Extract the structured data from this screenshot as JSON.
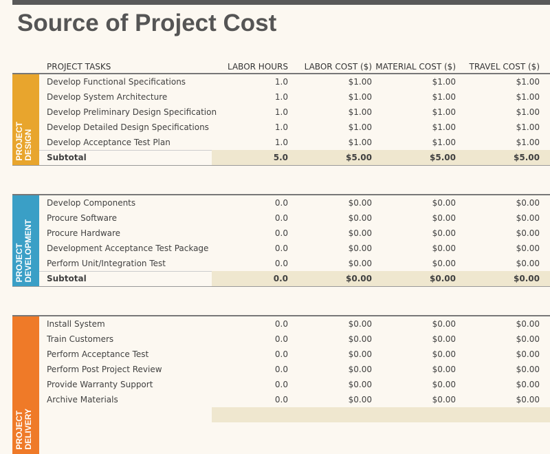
{
  "title": "Source of Project Cost",
  "columns": [
    "PROJECT TASKS",
    "LABOR HOURS",
    "LABOR COST ($)",
    "MATERIAL COST ($)",
    "TRAVEL COST ($)"
  ],
  "sections": [
    {
      "label": [
        "PROJECT",
        "DESIGN"
      ],
      "rows": [
        [
          "Develop Functional Specifications",
          "1.0",
          "$1.00",
          "$1.00",
          "$1.00"
        ],
        [
          "Develop System Architecture",
          "1.0",
          "$1.00",
          "$1.00",
          "$1.00"
        ],
        [
          "Develop Preliminary Design Specification",
          "1.0",
          "$1.00",
          "$1.00",
          "$1.00"
        ],
        [
          "Develop Detailed Design Specifications",
          "1.0",
          "$1.00",
          "$1.00",
          "$1.00"
        ],
        [
          "Develop Acceptance Test Plan",
          "1.0",
          "$1.00",
          "$1.00",
          "$1.00"
        ]
      ],
      "subtotal": [
        "Subtotal",
        "5.0",
        "$5.00",
        "$5.00",
        "$5.00"
      ]
    },
    {
      "label": [
        "PROJECT",
        "DEVELOPMENT"
      ],
      "rows": [
        [
          "Develop Components",
          "0.0",
          "$0.00",
          "$0.00",
          "$0.00"
        ],
        [
          "Procure Software",
          "0.0",
          "$0.00",
          "$0.00",
          "$0.00"
        ],
        [
          "Procure Hardware",
          "0.0",
          "$0.00",
          "$0.00",
          "$0.00"
        ],
        [
          "Development Acceptance Test Package",
          "0.0",
          "$0.00",
          "$0.00",
          "$0.00"
        ],
        [
          "Perform Unit/Integration Test",
          "0.0",
          "$0.00",
          "$0.00",
          "$0.00"
        ]
      ],
      "subtotal": [
        "Subtotal",
        "0.0",
        "$0.00",
        "$0.00",
        "$0.00"
      ]
    },
    {
      "label": [
        "PROJECT",
        "DELIVERY"
      ],
      "rows": [
        [
          "Install System",
          "0.0",
          "$0.00",
          "$0.00",
          "$0.00"
        ],
        [
          "Train Customers",
          "0.0",
          "$0.00",
          "$0.00",
          "$0.00"
        ],
        [
          "Perform Acceptance Test",
          "0.0",
          "$0.00",
          "$0.00",
          "$0.00"
        ],
        [
          "Perform Post Project Review",
          "0.0",
          "$0.00",
          "$0.00",
          "$0.00"
        ],
        [
          "Provide Warranty Support",
          "0.0",
          "$0.00",
          "$0.00",
          "$0.00"
        ],
        [
          "Archive Materials",
          "0.0",
          "$0.00",
          "$0.00",
          "$0.00"
        ]
      ]
    }
  ]
}
